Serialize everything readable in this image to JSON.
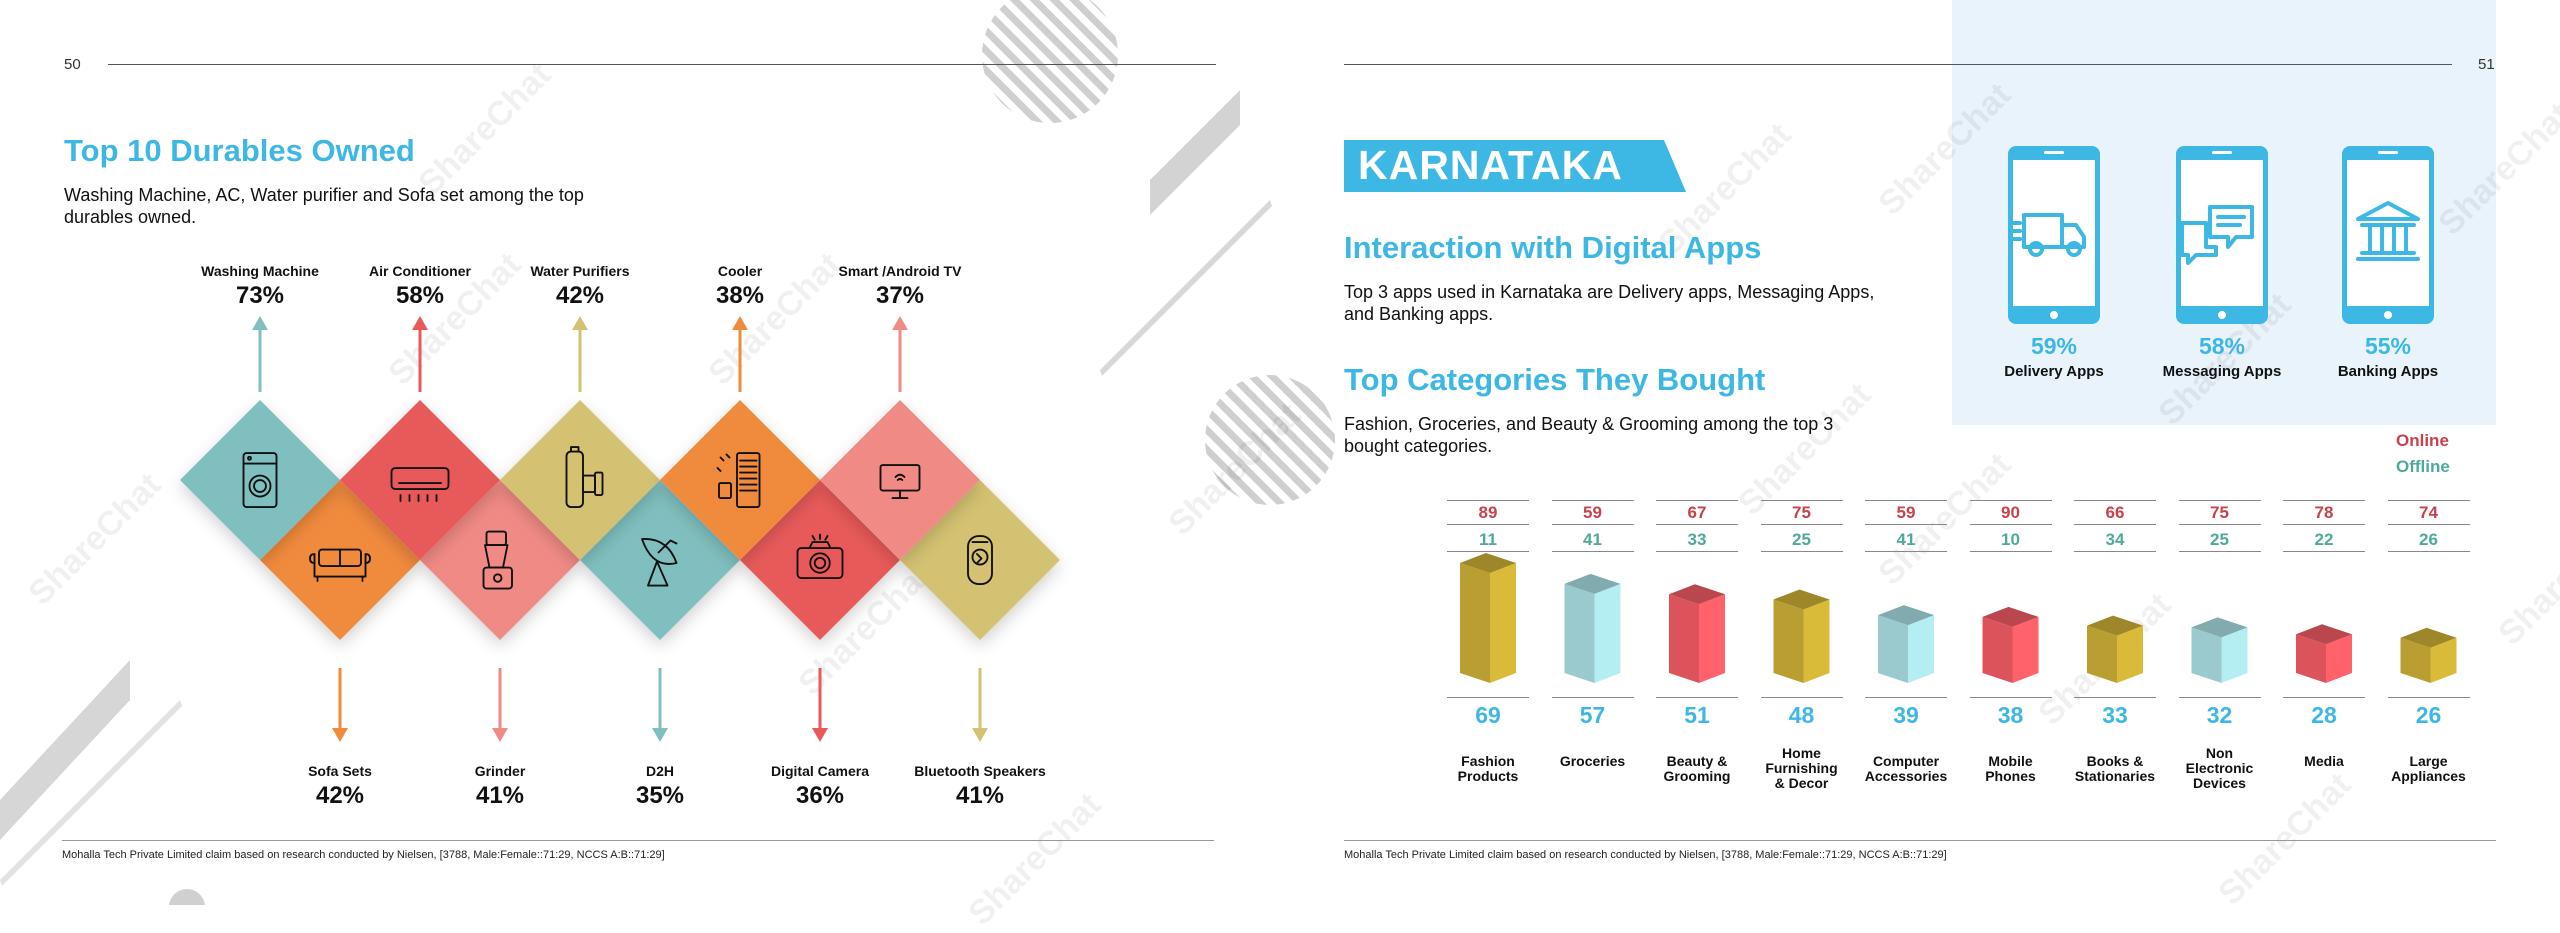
{
  "left_page": {
    "page_number": "50",
    "title": "Top 10 Durables Owned",
    "subtitle_line1": "Washing Machine, AC, Water purifier and Sofa set among the top",
    "subtitle_line2": "durables owned.",
    "top_items": [
      {
        "label": "Washing Machine",
        "pct": "73%",
        "color": "#7fbfbf",
        "icon": "washing-machine-icon"
      },
      {
        "label": "Air Conditioner",
        "pct": "58%",
        "color": "#e85a5a",
        "icon": "air-conditioner-icon"
      },
      {
        "label": "Water Purifiers",
        "pct": "42%",
        "color": "#d4c272",
        "icon": "water-purifier-icon"
      },
      {
        "label": "Cooler",
        "pct": "38%",
        "color": "#f08a3c",
        "icon": "cooler-icon"
      },
      {
        "label": "Smart /Android TV",
        "pct": "37%",
        "color": "#f08a85",
        "icon": "tv-icon"
      }
    ],
    "bottom_items": [
      {
        "label": "Sofa Sets",
        "pct": "42%",
        "color": "#f08a3c",
        "icon": "sofa-icon"
      },
      {
        "label": "Grinder",
        "pct": "41%",
        "color": "#f08a85",
        "icon": "grinder-icon"
      },
      {
        "label": "D2H",
        "pct": "35%",
        "color": "#7fbfbf",
        "icon": "satellite-dish-icon"
      },
      {
        "label": "Digital Camera",
        "pct": "36%",
        "color": "#e85a5a",
        "icon": "camera-icon"
      },
      {
        "label": "Bluetooth Speakers",
        "pct": "41%",
        "color": "#d4c272",
        "icon": "speaker-icon"
      }
    ],
    "footer": "Mohalla Tech Private Limited claim based on research conducted by Nielsen, [3788, Male:Female::71:29, NCCS A:B::71:29]"
  },
  "right_page": {
    "page_number": "51",
    "state_banner": "KARNATAKA",
    "apps_title": "Interaction with Digital Apps",
    "apps_text_line1": "Top 3 apps used in Karnataka are Delivery apps, Messaging Apps,",
    "apps_text_line2": "and Banking apps.",
    "apps": [
      {
        "pct": "59%",
        "label": "Delivery Apps",
        "icon": "delivery-truck-icon"
      },
      {
        "pct": "58%",
        "label": "Messaging Apps",
        "icon": "chat-bubbles-icon"
      },
      {
        "pct": "55%",
        "label": "Banking Apps",
        "icon": "bank-icon"
      }
    ],
    "categories_title": "Top Categories They Bought",
    "categories_text_line1": "Fashion, Groceries, and Beauty & Grooming among the top 3",
    "categories_text_line2": "bought categories.",
    "legend_online": "Online",
    "legend_offline": "Offline",
    "footer": "Mohalla Tech Private Limited claim based on research conducted by Nielsen, [3788, Male:Female::71:29, NCCS A:B::71:29]",
    "watermark": "ShareChat"
  },
  "chart_data": {
    "type": "bar",
    "categories": [
      "Fashion Products",
      "Groceries",
      "Beauty & Grooming",
      "Home Furnishing & Decor",
      "Computer Accessories",
      "Mobile Phones",
      "Books & Stationaries",
      "Non Electronic Devices",
      "Media",
      "Large Appliances"
    ],
    "category_lines": [
      [
        "Fashion",
        "Products"
      ],
      [
        "Groceries"
      ],
      [
        "Beauty &",
        "Grooming"
      ],
      [
        "Home",
        "Furnishing",
        "& Decor"
      ],
      [
        "Computer",
        "Accessories"
      ],
      [
        "Mobile",
        "Phones"
      ],
      [
        "Books &",
        "Stationaries"
      ],
      [
        "Non",
        "Electronic",
        "Devices"
      ],
      [
        "Media"
      ],
      [
        "Large",
        "Appliances"
      ]
    ],
    "series": [
      {
        "name": "Online",
        "values": [
          89,
          59,
          67,
          75,
          59,
          90,
          66,
          75,
          78,
          74
        ],
        "color": "#c9414b"
      },
      {
        "name": "Offline",
        "values": [
          11,
          41,
          33,
          25,
          41,
          10,
          34,
          25,
          22,
          26
        ],
        "color": "#4fa99a"
      }
    ],
    "values": [
      69,
      57,
      51,
      48,
      39,
      38,
      33,
      32,
      28,
      26
    ],
    "bar_colors": [
      "#c9ad35",
      "#a7dbe0",
      "#ef5b63",
      "#c9ad35",
      "#a7dbe0",
      "#ef5b63",
      "#c9ad35",
      "#a7dbe0",
      "#ef5b63",
      "#c9ad35"
    ],
    "legend_position": "top-right"
  }
}
